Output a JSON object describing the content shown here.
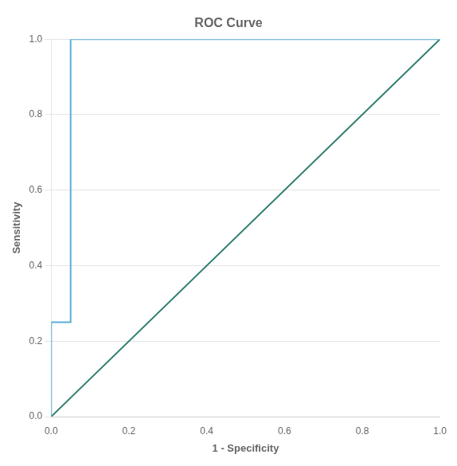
{
  "chart_data": {
    "type": "line",
    "title": "ROC Curve",
    "xlabel": "1 - Specificity",
    "ylabel": "Sensitivity",
    "series": [
      {
        "x": [
          0.0,
          1.0
        ],
        "values": [
          0.0,
          1.0
        ],
        "color": "#2e7d6e"
      },
      {
        "x": [
          0.0,
          0.0,
          0.05,
          0.05,
          1.0
        ],
        "values": [
          0.0,
          0.25,
          0.25,
          1.0,
          1.0
        ],
        "color": "#5bafd6"
      }
    ],
    "xlim": [
      0.0,
      1.0
    ],
    "ylim": [
      0.0,
      1.0
    ],
    "xticks": [
      {
        "value": 0.0,
        "label": "0.0"
      },
      0.2,
      0.4,
      0.6,
      0.8,
      {
        "value": 1.0,
        "label": "1.0"
      }
    ],
    "yticks": [
      {
        "value": 0.0,
        "label": "0.0"
      },
      0.2,
      0.4,
      0.6,
      0.8,
      {
        "value": 1.0,
        "label": "1.0"
      }
    ],
    "grid": "y"
  }
}
